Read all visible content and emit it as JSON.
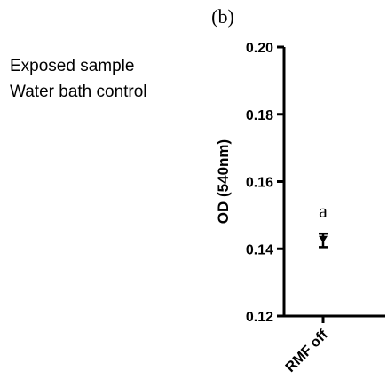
{
  "panel_label": "(b)",
  "legend": [
    "Exposed sample",
    "Water bath control"
  ],
  "chart_data": {
    "type": "scatter",
    "title": "",
    "xlabel": "",
    "ylabel": "OD (540nm)",
    "categories": [
      "RMF off"
    ],
    "ylim": [
      0.12,
      0.2
    ],
    "yticks": [
      0.12,
      0.14,
      0.16,
      0.18,
      0.2
    ],
    "ytick_labels": [
      "0.12",
      "0.14",
      "0.16",
      "0.18",
      "0.20"
    ],
    "points": [
      {
        "category": "RMF off",
        "y": 0.1425,
        "err_low": 0.1405,
        "err_high": 0.1445
      }
    ],
    "annotations": [
      {
        "category": "RMF off",
        "text": "a"
      }
    ],
    "grid": false
  }
}
